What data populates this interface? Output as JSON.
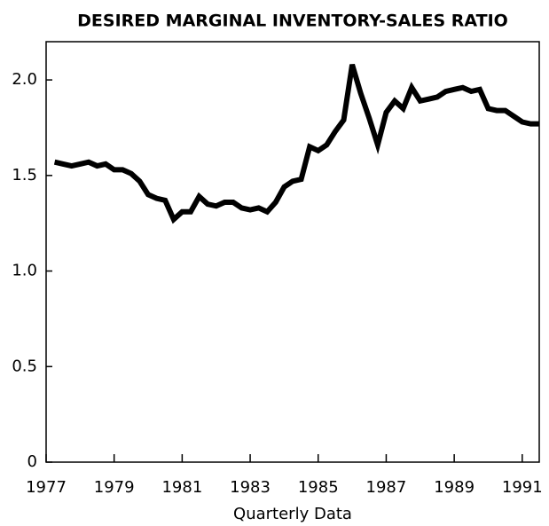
{
  "chart_data": {
    "type": "line",
    "title": "DESIRED MARGINAL INVENTORY-SALES RATIO",
    "x_label": "Quarterly Data",
    "x": [
      1977.25,
      1977.5,
      1977.75,
      1978,
      1978.25,
      1978.5,
      1978.75,
      1979,
      1979.25,
      1979.5,
      1979.75,
      1980,
      1980.25,
      1980.5,
      1980.75,
      1981,
      1981.25,
      1981.5,
      1981.75,
      1982,
      1982.25,
      1982.5,
      1982.75,
      1983,
      1983.25,
      1983.5,
      1983.75,
      1984,
      1984.25,
      1984.5,
      1984.75,
      1985,
      1985.25,
      1985.5,
      1985.75,
      1986,
      1986.25,
      1986.5,
      1986.75,
      1987,
      1987.25,
      1987.5,
      1987.75,
      1988,
      1988.25,
      1988.5,
      1988.75,
      1989,
      1989.25,
      1989.5,
      1989.75,
      1990,
      1990.25,
      1990.5,
      1990.75,
      1991,
      1991.25,
      1991.5
    ],
    "series": [
      {
        "color": "#000000",
        "values": [
          1.57,
          1.56,
          1.55,
          1.56,
          1.57,
          1.55,
          1.56,
          1.53,
          1.53,
          1.51,
          1.47,
          1.4,
          1.38,
          1.37,
          1.27,
          1.31,
          1.31,
          1.39,
          1.35,
          1.34,
          1.36,
          1.36,
          1.33,
          1.32,
          1.33,
          1.31,
          1.36,
          1.44,
          1.47,
          1.48,
          1.65,
          1.63,
          1.66,
          1.73,
          1.79,
          2.08,
          1.93,
          1.8,
          1.66,
          1.83,
          1.89,
          1.85,
          1.96,
          1.89,
          1.9,
          1.91,
          1.94,
          1.95,
          1.96,
          1.94,
          1.95,
          1.85,
          1.84,
          1.84,
          1.81,
          1.78,
          1.77,
          1.77
        ]
      }
    ],
    "xlim": [
      1977,
      1991.5
    ],
    "xticks": [
      1977,
      1979,
      1981,
      1983,
      1985,
      1987,
      1989,
      1991
    ],
    "ylim": [
      0,
      2.2
    ],
    "yticks": [
      0,
      0.5,
      {
        "value": 1,
        "label": "1.0"
      },
      1.5,
      {
        "value": 2,
        "label": "2.0"
      }
    ]
  }
}
